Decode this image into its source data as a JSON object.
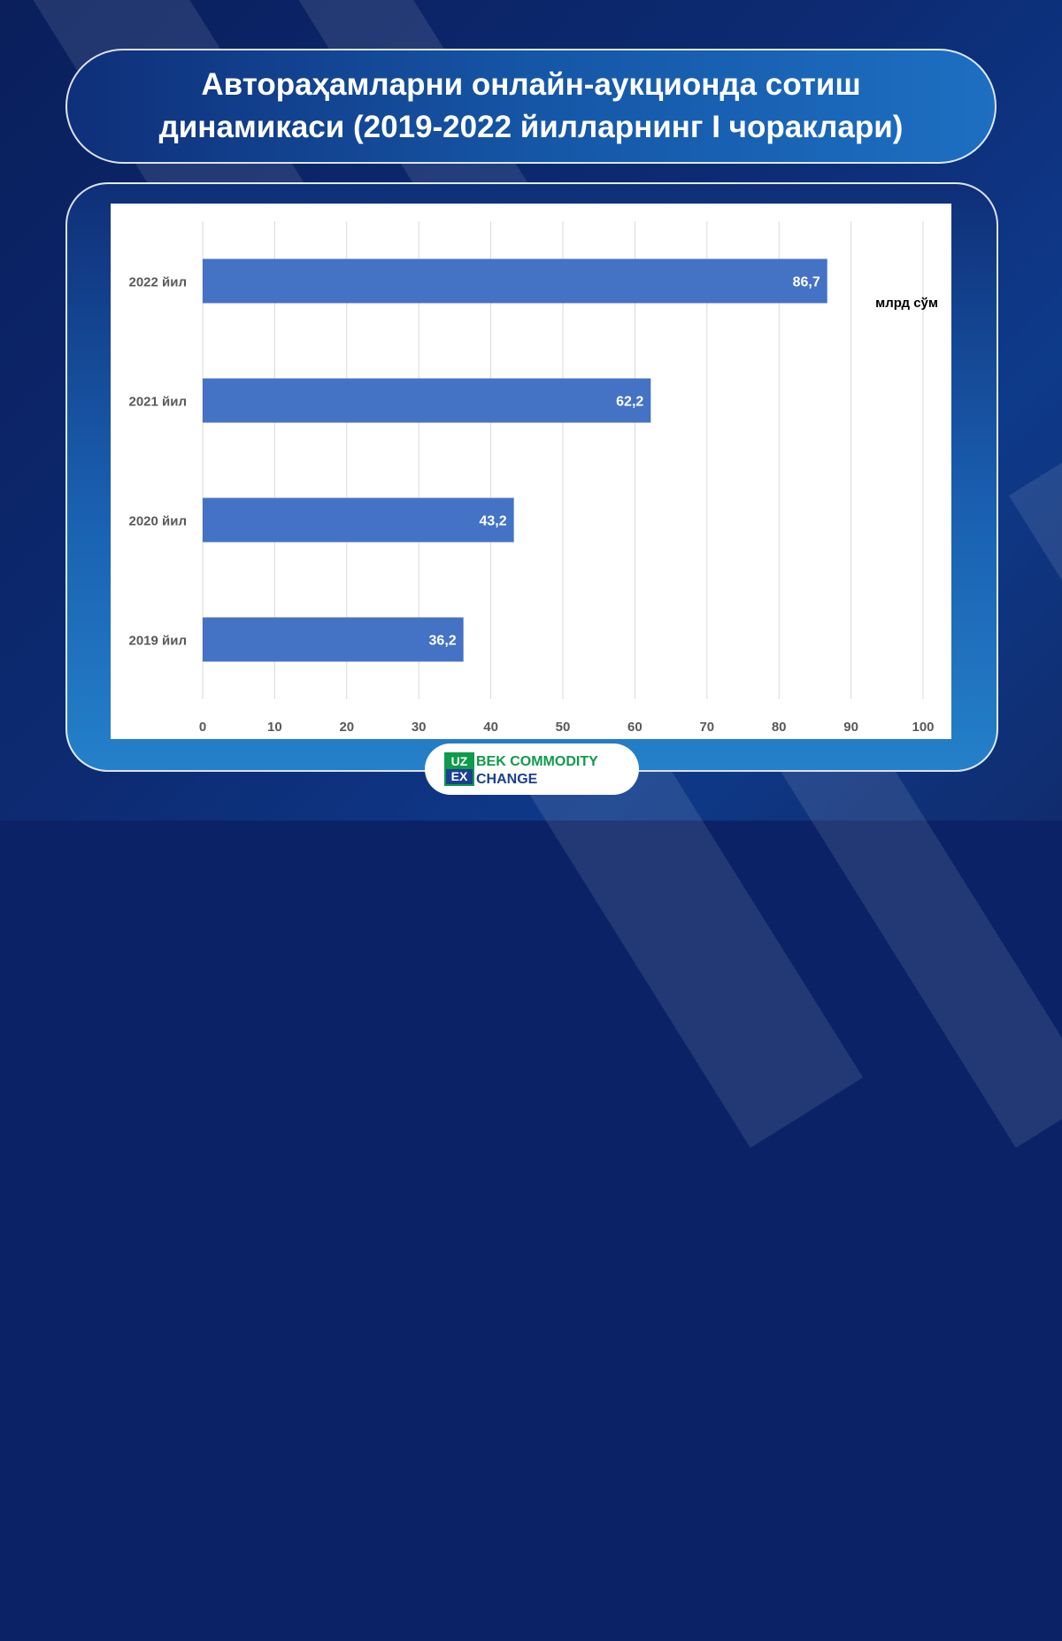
{
  "title": "Автораҳамларни онлайн-аукционда сотиш динамикаси (2019-2022 йилларнинг I чораклари)",
  "chart_data": {
    "type": "bar",
    "orientation": "horizontal",
    "categories": [
      "2022 йил",
      "2021 йил",
      "2020 йил",
      "2019 йил"
    ],
    "values": [
      86.7,
      62.2,
      43.2,
      36.2
    ],
    "data_labels": [
      "86,7",
      "62,2",
      "43,2",
      "36,2"
    ],
    "unit_label": "млрд сўм",
    "xlim": [
      0,
      100
    ],
    "x_ticks": [
      "0",
      "10",
      "20",
      "30",
      "40",
      "50",
      "60",
      "70",
      "80",
      "90",
      "100"
    ],
    "grid": true,
    "bar_color": "#4472c4"
  },
  "logo": {
    "mark_top": "UZ",
    "mark_bottom": "EX",
    "line1": "BEK COMMODITY",
    "line2": "CHANGE"
  },
  "colors": {
    "background": "#0b2366",
    "brand_green": "#0e9b4a",
    "brand_blue": "#1b3f91"
  }
}
